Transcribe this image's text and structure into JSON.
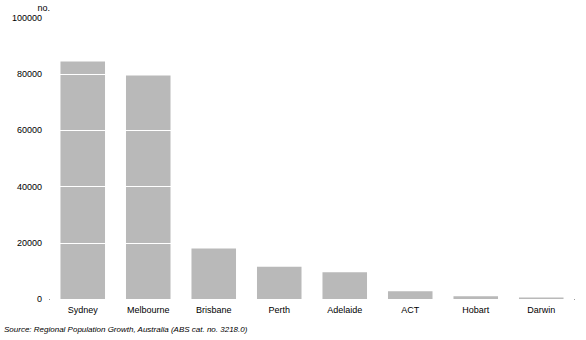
{
  "chart_data": {
    "type": "bar",
    "ylabel": "no.",
    "annotation": "Source: Regional Population Growth, Australia (ABS cat. no. 3218.0)",
    "categories": [
      "Sydney",
      "Melbourne",
      "Brisbane",
      "Perth",
      "Adelaide",
      "ACT",
      "Hobart",
      "Darwin"
    ],
    "values": [
      84500,
      79500,
      18000,
      11500,
      9500,
      2800,
      1000,
      500
    ],
    "color": "#b9b9b9",
    "ylim": [
      0,
      100000
    ],
    "yticks": [
      0,
      20000,
      40000,
      60000,
      80000,
      100000
    ],
    "grid": true
  }
}
